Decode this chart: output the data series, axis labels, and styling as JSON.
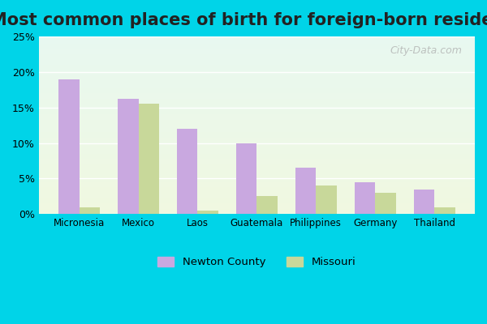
{
  "title": "Most common places of birth for foreign-born residents",
  "categories": [
    "Micronesia",
    "Mexico",
    "Laos",
    "Guatemala",
    "Philippines",
    "Germany",
    "Thailand"
  ],
  "newton_county": [
    19.0,
    16.2,
    12.0,
    10.0,
    6.5,
    4.5,
    3.5
  ],
  "missouri": [
    1.0,
    15.5,
    0.5,
    2.5,
    4.0,
    3.0,
    1.0
  ],
  "newton_color": "#c9a8e0",
  "missouri_color": "#c8d89a",
  "fig_bg_color": "#00d4e8",
  "title_fontsize": 15,
  "legend_labels": [
    "Newton County",
    "Missouri"
  ],
  "yticks": [
    0,
    5,
    10,
    15,
    20,
    25
  ],
  "ytick_labels": [
    "0%",
    "5%",
    "10%",
    "15%",
    "20%",
    "25%"
  ],
  "ylim": [
    0,
    25
  ],
  "bar_width": 0.35,
  "watermark": "City-Data.com"
}
